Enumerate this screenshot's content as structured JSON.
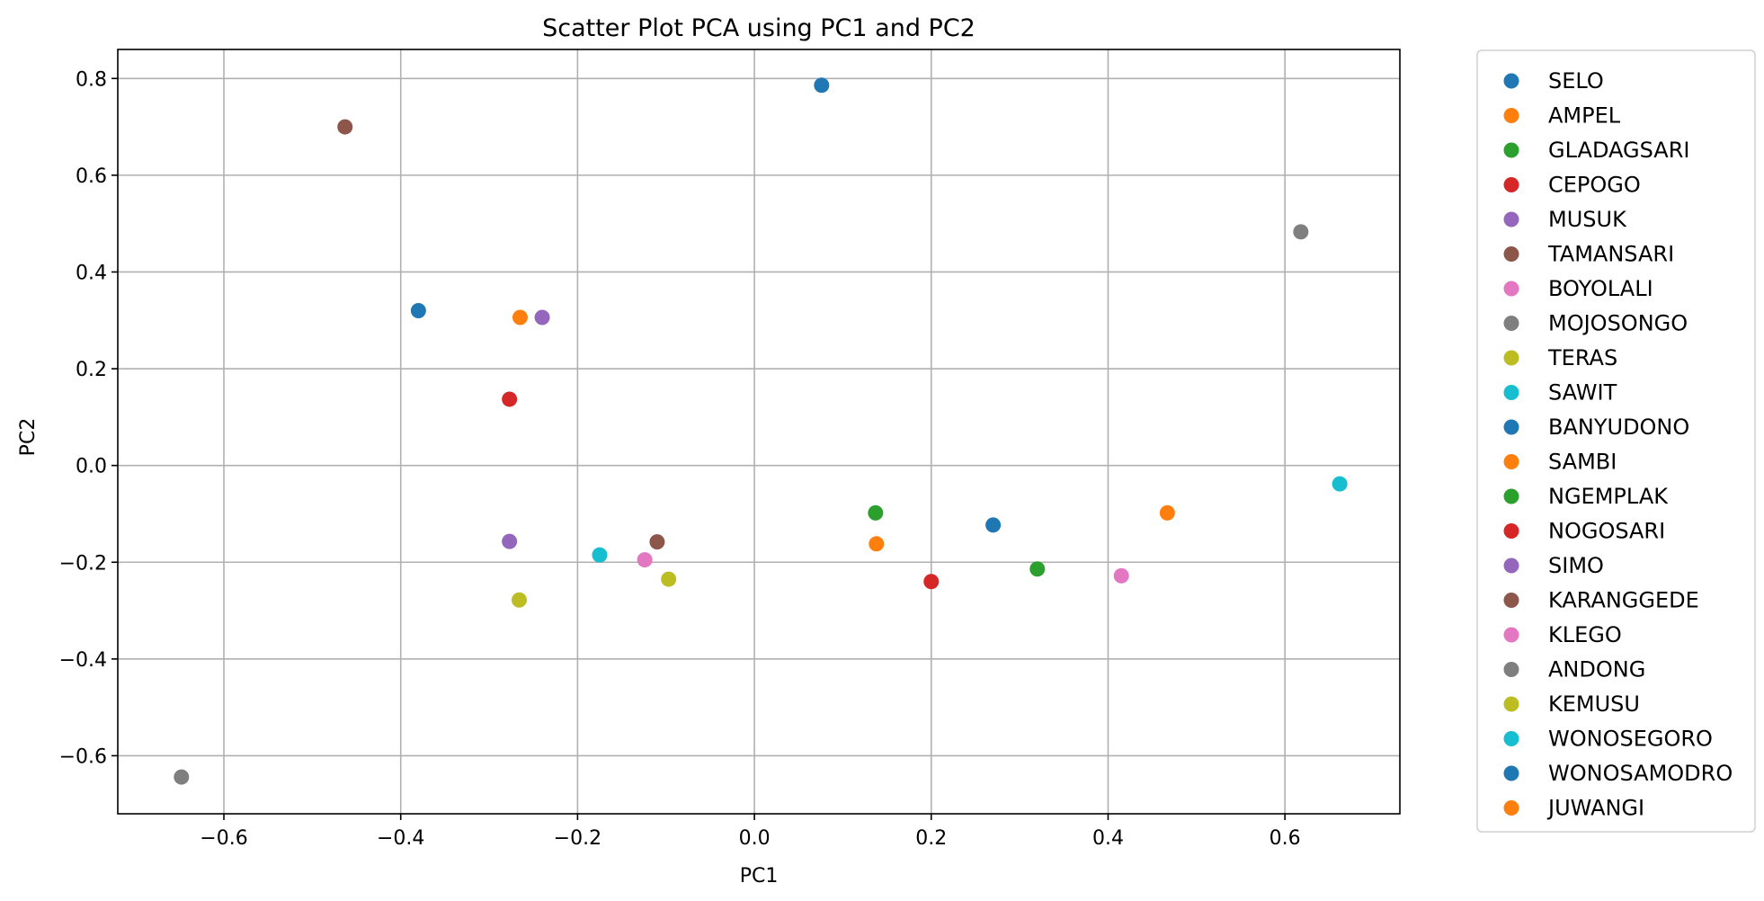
{
  "chart_data": {
    "type": "scatter",
    "title": "Scatter Plot PCA using PC1 and PC2",
    "xlabel": "PC1",
    "ylabel": "PC2",
    "xlim": [
      -0.72,
      0.73
    ],
    "ylim": [
      -0.72,
      0.86
    ],
    "xticks": [
      -0.6,
      -0.4,
      -0.2,
      0.0,
      0.2,
      0.4,
      0.6
    ],
    "xtick_labels": [
      "−0.6",
      "−0.4",
      "−0.2",
      "0.0",
      "0.2",
      "0.4",
      "0.6"
    ],
    "yticks": [
      -0.6,
      -0.4,
      -0.2,
      0.0,
      0.2,
      0.4,
      0.6,
      0.8
    ],
    "ytick_labels": [
      "−0.6",
      "−0.4",
      "−0.2",
      "0.0",
      "0.2",
      "0.4",
      "0.6",
      "0.8"
    ],
    "grid": true,
    "legend_position": "outside right",
    "series": [
      {
        "name": "SELO",
        "color": "#1f77b4",
        "x": 0.076,
        "y": 0.786
      },
      {
        "name": "AMPEL",
        "color": "#ff7f0e",
        "x": -0.265,
        "y": 0.306
      },
      {
        "name": "GLADAGSARI",
        "color": "#2ca02c",
        "x": 0.137,
        "y": -0.098
      },
      {
        "name": "CEPOGO",
        "color": "#d62728",
        "x": -0.277,
        "y": 0.137
      },
      {
        "name": "MUSUK",
        "color": "#9467bd",
        "x": -0.24,
        "y": 0.306
      },
      {
        "name": "TAMANSARI",
        "color": "#8c564b",
        "x": -0.463,
        "y": 0.7
      },
      {
        "name": "BOYOLALI",
        "color": "#e377c2",
        "x": -0.124,
        "y": -0.195
      },
      {
        "name": "MOJOSONGO",
        "color": "#7f7f7f",
        "x": 0.618,
        "y": 0.483
      },
      {
        "name": "TERAS",
        "color": "#bcbd22",
        "x": -0.097,
        "y": -0.235
      },
      {
        "name": "SAWIT",
        "color": "#17becf",
        "x": -0.175,
        "y": -0.185
      },
      {
        "name": "BANYUDONO",
        "color": "#1f77b4",
        "x": -0.38,
        "y": 0.32
      },
      {
        "name": "SAMBI",
        "color": "#ff7f0e",
        "x": 0.138,
        "y": -0.162
      },
      {
        "name": "NGEMPLAK",
        "color": "#2ca02c",
        "x": 0.32,
        "y": -0.214
      },
      {
        "name": "NOGOSARI",
        "color": "#d62728",
        "x": 0.2,
        "y": -0.24
      },
      {
        "name": "SIMO",
        "color": "#9467bd",
        "x": -0.277,
        "y": -0.157
      },
      {
        "name": "KARANGGEDE",
        "color": "#8c564b",
        "x": -0.11,
        "y": -0.158
      },
      {
        "name": "KLEGO",
        "color": "#e377c2",
        "x": 0.415,
        "y": -0.228
      },
      {
        "name": "ANDONG",
        "color": "#7f7f7f",
        "x": -0.648,
        "y": -0.644
      },
      {
        "name": "KEMUSU",
        "color": "#bcbd22",
        "x": -0.266,
        "y": -0.278
      },
      {
        "name": "WONOSEGORO",
        "color": "#17becf",
        "x": 0.662,
        "y": -0.038
      },
      {
        "name": "WONOSAMODRO",
        "color": "#1f77b4",
        "x": 0.27,
        "y": -0.123
      },
      {
        "name": "JUWANGI",
        "color": "#ff7f0e",
        "x": 0.467,
        "y": -0.098
      }
    ]
  }
}
